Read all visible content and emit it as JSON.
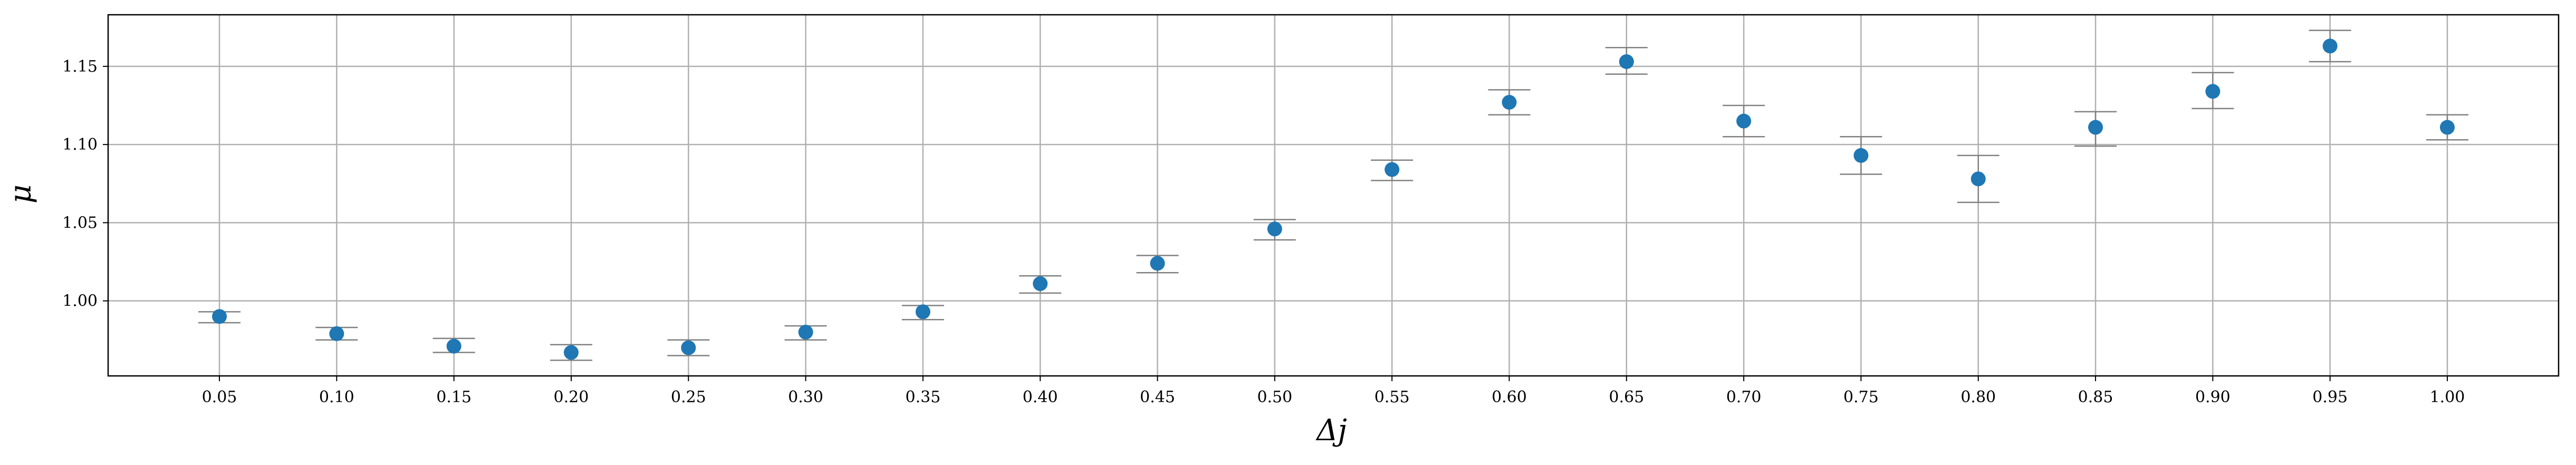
{
  "chart_data": {
    "type": "scatter",
    "xlabel": "Δj",
    "ylabel": "μ",
    "x_ticks": [
      "0.05",
      "0.10",
      "0.15",
      "0.20",
      "0.25",
      "0.30",
      "0.35",
      "0.40",
      "0.45",
      "0.50",
      "0.55",
      "0.60",
      "0.65",
      "0.70",
      "0.75",
      "0.80",
      "0.85",
      "0.90",
      "0.95",
      "1.00"
    ],
    "y_ticks": [
      "1.00",
      "1.05",
      "1.10",
      "1.15"
    ],
    "ylim": [
      0.952,
      1.183
    ],
    "grid": true,
    "series": [
      {
        "x": [
          0.05,
          0.1,
          0.15,
          0.2,
          0.25,
          0.3,
          0.35,
          0.4,
          0.45,
          0.5,
          0.55,
          0.6,
          0.65,
          0.7,
          0.75,
          0.8,
          0.85,
          0.9,
          0.95,
          1.0
        ],
        "y": [
          0.99,
          0.979,
          0.971,
          0.967,
          0.97,
          0.98,
          0.993,
          1.011,
          1.024,
          1.046,
          1.084,
          1.127,
          1.153,
          1.115,
          1.093,
          1.078,
          1.111,
          1.134,
          1.163,
          1.111
        ],
        "err_low": [
          0.986,
          0.975,
          0.967,
          0.962,
          0.965,
          0.975,
          0.988,
          1.005,
          1.018,
          1.039,
          1.077,
          1.119,
          1.145,
          1.105,
          1.081,
          1.063,
          1.099,
          1.123,
          1.153,
          1.103
        ],
        "err_high": [
          0.993,
          0.983,
          0.976,
          0.972,
          0.975,
          0.984,
          0.997,
          1.016,
          1.029,
          1.052,
          1.09,
          1.135,
          1.162,
          1.125,
          1.105,
          1.093,
          1.121,
          1.146,
          1.173,
          1.119
        ]
      }
    ],
    "colors": {
      "marker": "#1f77b4",
      "errorbar": "#808080",
      "grid": "#b0b0b0",
      "axes": "#000000"
    }
  }
}
